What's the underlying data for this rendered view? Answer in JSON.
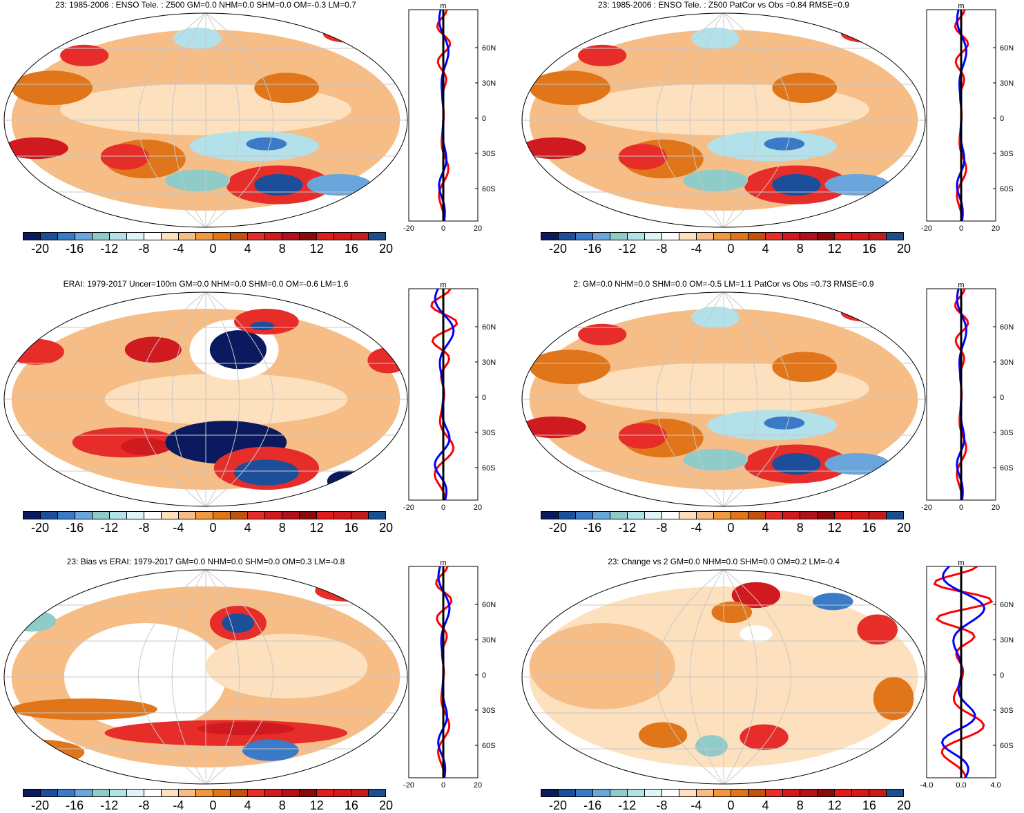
{
  "colors": {
    "levels": [
      "#0b1a5e",
      "#1c4e9a",
      "#3a7ac7",
      "#6aa5db",
      "#8ecbc9",
      "#b3e1ea",
      "#dff4f6",
      "#ffffff",
      "#fde0bd",
      "#f6bd86",
      "#f0973f",
      "#e07619",
      "#c0510e",
      "#e72d2a",
      "#d11a1f",
      "#b2101a",
      "#8a0a0c",
      "#e11a1a",
      "#d21a1a",
      "#c41c1c",
      "#1d4f8f"
    ],
    "model_line": "#0000ff",
    "obs_line": "#ff0000",
    "mean_line": "#000000",
    "grid": "#c8c8c8"
  },
  "panels": [
    {
      "title": "23: 1985-2006 : ENSO Tele. : Z500 GM=0.0 NHM=0.0 SHM=0.0 OM=-0.3 LM=0.7",
      "colorbar_labels": [
        "-20",
        "-16",
        "-12",
        "-8",
        "-4",
        "0",
        "4",
        "8",
        "12",
        "16",
        "20"
      ],
      "zonal": {
        "unit": "m",
        "x_ticks": [
          "-20",
          "0",
          "20"
        ],
        "y_ticks": [
          "60N",
          "30N",
          "0",
          "30S",
          "60S"
        ]
      },
      "anomaly_level": "moderate"
    },
    {
      "title": "23: 1985-2006 : ENSO Tele. : Z500 PatCor vs Obs =0.84 RMSE=0.9",
      "colorbar_labels": [
        "-20",
        "-16",
        "-12",
        "-8",
        "-4",
        "0",
        "4",
        "8",
        "12",
        "16",
        "20"
      ],
      "zonal": {
        "unit": "m",
        "x_ticks": [
          "-20",
          "0",
          "20"
        ],
        "y_ticks": [
          "60N",
          "30N",
          "0",
          "30S",
          "60S"
        ]
      },
      "anomaly_level": "moderate"
    },
    {
      "title": "ERAI: 1979-2017 Uncer=100m GM=0.0 NHM=0.0 SHM=0.0 OM=-0.6 LM=1.6",
      "colorbar_labels": [
        "-20",
        "-16",
        "-12",
        "-8",
        "-4",
        "0",
        "4",
        "8",
        "12",
        "16",
        "20"
      ],
      "zonal": {
        "unit": "m",
        "x_ticks": [
          "-20",
          "0",
          "20"
        ],
        "y_ticks": [
          "60N",
          "30N",
          "0",
          "30S",
          "60S"
        ]
      },
      "anomaly_level": "strong"
    },
    {
      "title": "2: GM=0.0 NHM=0.0 SHM=0.0 OM=-0.5 LM=1.1 PatCor vs Obs =0.73 RMSE=0.9",
      "colorbar_labels": [
        "-20",
        "-16",
        "-12",
        "-8",
        "-4",
        "0",
        "4",
        "8",
        "12",
        "16",
        "20"
      ],
      "zonal": {
        "unit": "m",
        "x_ticks": [
          "-20",
          "0",
          "20"
        ],
        "y_ticks": [
          "60N",
          "30N",
          "0",
          "30S",
          "60S"
        ]
      },
      "anomaly_level": "moderate"
    },
    {
      "title": "23: Bias vs ERAI: 1979-2017 GM=0.0 NHM=0.0 SHM=0.0 OM=0.3 LM=-0.8",
      "colorbar_labels": [
        "-20",
        "-16",
        "-12",
        "-8",
        "-4",
        "0",
        "4",
        "8",
        "12",
        "16",
        "20"
      ],
      "zonal": {
        "unit": "m",
        "x_ticks": [
          "-20",
          "0",
          "20"
        ],
        "y_ticks": [
          "60N",
          "30N",
          "0",
          "30S",
          "60S"
        ]
      },
      "anomaly_level": "bias"
    },
    {
      "title": "23: Change vs 2 GM=0.0 NHM=0.0 SHM=0.0 OM=0.2 LM=-0.4",
      "colorbar_labels": [
        "-20",
        "-16",
        "-12",
        "-8",
        "-4",
        "0",
        "4",
        "8",
        "12",
        "16",
        "20"
      ],
      "zonal": {
        "unit": "m",
        "x_ticks": [
          "-4.0",
          "0.0",
          "4.0"
        ],
        "y_ticks": [
          "60N",
          "30N",
          "0",
          "30S",
          "60S"
        ]
      },
      "anomaly_level": "change"
    }
  ]
}
